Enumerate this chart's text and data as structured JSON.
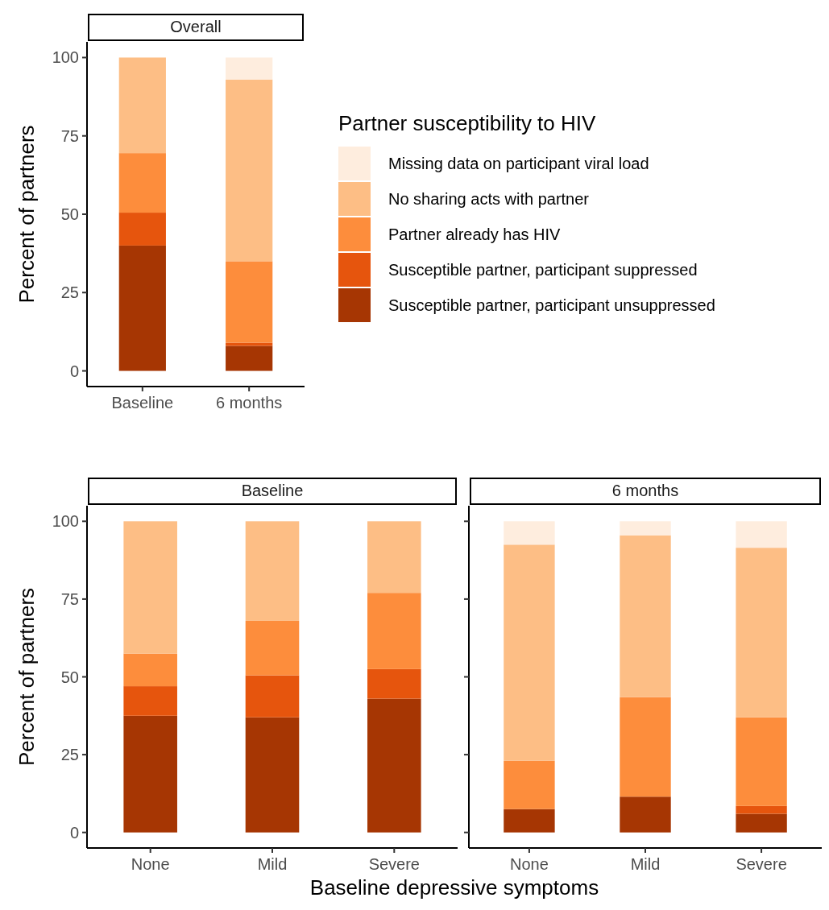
{
  "chart_data": [
    {
      "type": "bar",
      "title": "Overall",
      "ylabel": "Percent of partners",
      "legend_title": "Partner susceptibility to HIV",
      "legend": "right",
      "stacked": true,
      "categories": [
        "Baseline",
        "6 months"
      ],
      "ylim": [
        -5,
        105
      ],
      "yticks": [
        0,
        25,
        50,
        75,
        100
      ],
      "series": [
        {
          "name": "Susceptible partner, participant unsuppressed",
          "color": "#a63603",
          "values": [
            40,
            8
          ]
        },
        {
          "name": "Susceptible partner, participant suppressed",
          "color": "#e6550d",
          "values": [
            10.5,
            1
          ]
        },
        {
          "name": "Partner already has HIV",
          "color": "#fd8d3c",
          "values": [
            19,
            26
          ]
        },
        {
          "name": "No sharing acts with partner",
          "color": "#fdbe85",
          "values": [
            30.5,
            58
          ]
        },
        {
          "name": "Missing data on participant viral load",
          "color": "#feedde",
          "values": [
            0,
            7
          ]
        }
      ]
    },
    {
      "type": "bar",
      "title": "Baseline",
      "ylabel": "Percent of partners",
      "xlabel": "Baseline depressive symptoms",
      "stacked": true,
      "categories": [
        "None",
        "Mild",
        "Severe"
      ],
      "ylim": [
        -5,
        105
      ],
      "yticks": [
        0,
        25,
        50,
        75,
        100
      ],
      "series": [
        {
          "color": "#a63603",
          "values": [
            37.5,
            37,
            43
          ]
        },
        {
          "color": "#e6550d",
          "values": [
            9.5,
            13.5,
            9.5
          ]
        },
        {
          "color": "#fd8d3c",
          "values": [
            10.5,
            17.5,
            24.5
          ]
        },
        {
          "color": "#fdbe85",
          "values": [
            42.5,
            32,
            23
          ]
        },
        {
          "color": "#feedde",
          "values": [
            0,
            0,
            0
          ]
        }
      ]
    },
    {
      "type": "bar",
      "title": "6 months",
      "stacked": true,
      "tick_labels": "x",
      "categories": [
        "None",
        "Mild",
        "Severe"
      ],
      "ylim": [
        -5,
        105
      ],
      "yticks": [
        0,
        25,
        50,
        75,
        100
      ],
      "series": [
        {
          "color": "#a63603",
          "values": [
            7.5,
            11.5,
            6
          ]
        },
        {
          "color": "#e6550d",
          "values": [
            0,
            0,
            2.5
          ]
        },
        {
          "color": "#fd8d3c",
          "values": [
            15.5,
            32,
            28.5
          ]
        },
        {
          "color": "#fdbe85",
          "values": [
            69.5,
            52,
            54.5
          ]
        },
        {
          "color": "#feedde",
          "values": [
            7.5,
            4.5,
            8.5
          ]
        }
      ]
    }
  ]
}
